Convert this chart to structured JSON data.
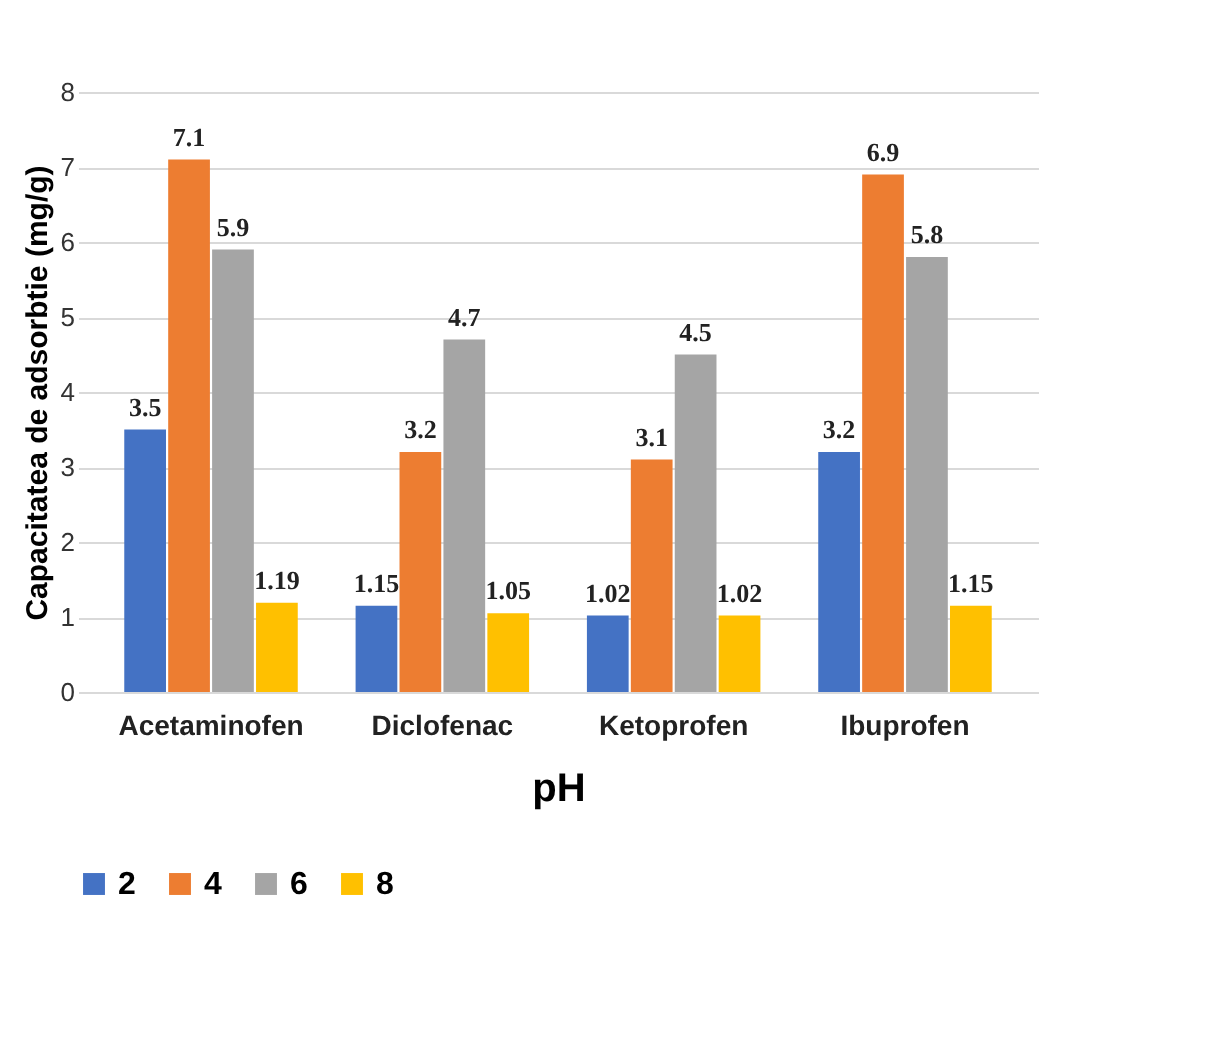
{
  "chart_data": {
    "type": "bar",
    "xlabel": "pH",
    "ylabel": "Capacitatea de adsorbtie (mg/g)",
    "categories": [
      "Acetaminofen",
      "Diclofenac",
      "Ketoprofen",
      "Ibuprofen"
    ],
    "series": [
      {
        "name": "2",
        "color": "#4472c4",
        "values": [
          3.5,
          1.15,
          1.02,
          3.2
        ]
      },
      {
        "name": "4",
        "color": "#ed7d31",
        "values": [
          7.1,
          3.2,
          3.1,
          6.9
        ]
      },
      {
        "name": "6",
        "color": "#a5a5a5",
        "values": [
          5.9,
          4.7,
          4.5,
          5.8
        ]
      },
      {
        "name": "8",
        "color": "#ffc000",
        "values": [
          1.19,
          1.05,
          1.02,
          1.15
        ]
      }
    ],
    "ylim": [
      0,
      8
    ],
    "yticks": [
      0,
      1,
      2,
      3,
      4,
      5,
      6,
      7,
      8
    ],
    "grid": "y",
    "legend": "bottom",
    "data_labels": true
  }
}
